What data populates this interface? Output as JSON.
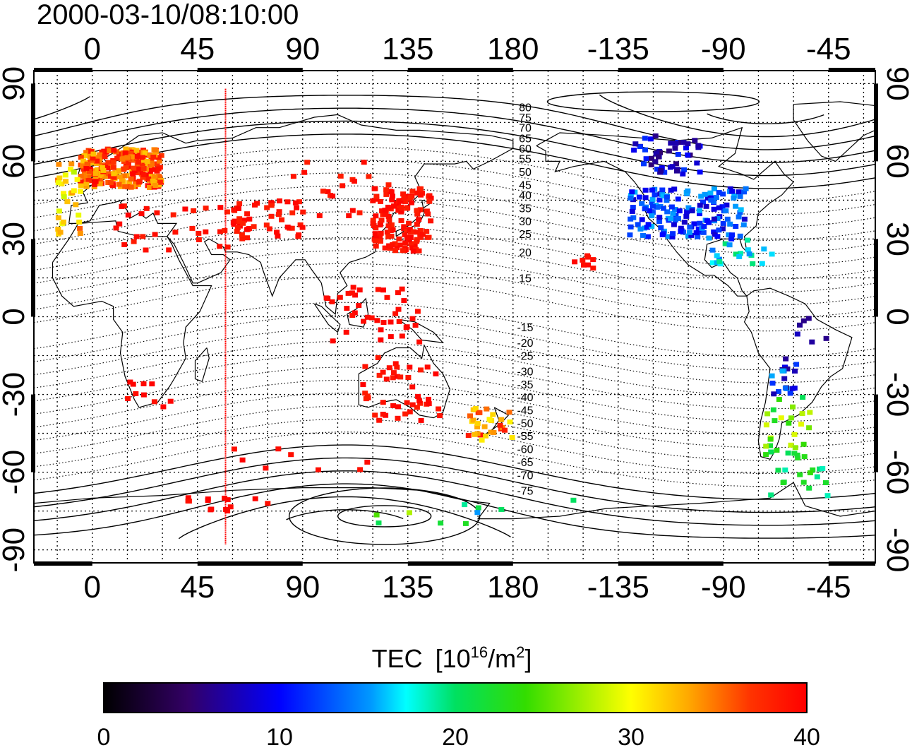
{
  "timestamp": "2000-03-10/08:10:00",
  "top_lon_labels": [
    "0",
    "45",
    "90",
    "135",
    "180",
    "-135",
    "-90",
    "-45"
  ],
  "bottom_lon_labels": [
    "0",
    "45",
    "90",
    "135",
    "180",
    "-135",
    "-90",
    "-45"
  ],
  "lat_labels": [
    "90",
    "60",
    "30",
    "0",
    "-30",
    "-60",
    "-90"
  ],
  "contour_labels": [
    "80",
    "75",
    "70",
    "65",
    "60",
    "55",
    "50",
    "45",
    "40",
    "35",
    "30",
    "25",
    "20",
    "15",
    "-15",
    "-20",
    "-25",
    "-30",
    "-35",
    "-40",
    "-45",
    "-50",
    "-55",
    "-60",
    "-65",
    "-70",
    "-75"
  ],
  "colorbar": {
    "title": "TEC",
    "unit_prefix": "[10",
    "unit_exp": "16",
    "unit_mid": "/m",
    "unit_exp2": "2",
    "unit_suffix": "]",
    "tick_labels": [
      "0",
      "10",
      "20",
      "30",
      "40"
    ],
    "range": [
      0,
      40
    ]
  },
  "colors": {
    "tec_high": "#ff1a1a",
    "meridian_line": "#ff0000",
    "coastline": "#000000"
  },
  "map": {
    "lon_range": [
      -25,
      335
    ],
    "lat_range": [
      -95,
      95
    ],
    "meridian_marker_lon": 57
  }
}
